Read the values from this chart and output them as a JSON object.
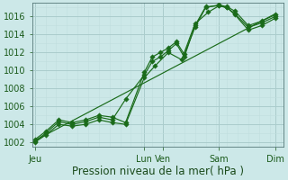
{
  "xlabel": "Pression niveau de la mer( hPa )",
  "bg_color": "#cce8e8",
  "grid_major_color": "#aacccc",
  "grid_minor_color": "#c0dede",
  "line_color": "#1a6b1a",
  "ylim": [
    1001.5,
    1017.5
  ],
  "yticks": [
    1002,
    1004,
    1006,
    1008,
    1010,
    1012,
    1014,
    1016
  ],
  "xlim": [
    -0.1,
    9.3
  ],
  "day_positions": [
    0.0,
    4.1,
    4.8,
    6.9,
    9.0
  ],
  "day_labels": [
    "Jeu",
    "Lun",
    "Ven",
    "Sam",
    "Dim"
  ],
  "trend_x": [
    0.0,
    9.0
  ],
  "trend_y": [
    1002.2,
    1016.3
  ],
  "line1_x": [
    0.0,
    0.4,
    0.9,
    1.4,
    1.9,
    2.4,
    2.9,
    3.4,
    4.1,
    4.4,
    4.7,
    5.0,
    5.3,
    5.6,
    6.0,
    6.4,
    6.9,
    7.2,
    7.5,
    8.0,
    8.5,
    9.0
  ],
  "line1_y": [
    1002.3,
    1003.2,
    1004.5,
    1004.2,
    1004.5,
    1005.0,
    1004.8,
    1004.2,
    1009.8,
    1011.5,
    1012.0,
    1012.5,
    1013.2,
    1011.8,
    1014.8,
    1017.0,
    1017.3,
    1017.1,
    1016.6,
    1015.0,
    1015.5,
    1016.2
  ],
  "line2_x": [
    0.0,
    0.4,
    0.9,
    1.4,
    1.9,
    2.4,
    2.9,
    3.4,
    4.1,
    4.4,
    4.7,
    5.0,
    5.3,
    5.6,
    6.0,
    6.4,
    6.9,
    7.2,
    7.5,
    8.0,
    8.5,
    9.0
  ],
  "line2_y": [
    1002.1,
    1003.0,
    1004.3,
    1004.0,
    1004.3,
    1004.8,
    1004.5,
    1006.8,
    1009.5,
    1011.0,
    1011.5,
    1012.2,
    1013.0,
    1011.5,
    1015.0,
    1017.1,
    1017.2,
    1017.0,
    1016.3,
    1014.8,
    1015.3,
    1016.0
  ],
  "line3_x": [
    0.0,
    0.4,
    0.9,
    1.4,
    1.9,
    2.4,
    2.9,
    3.4,
    4.1,
    4.5,
    5.0,
    5.5,
    6.0,
    6.5,
    6.9,
    7.2,
    7.5,
    8.0,
    8.5,
    9.0
  ],
  "line3_y": [
    1002.0,
    1002.8,
    1004.0,
    1003.8,
    1004.0,
    1004.5,
    1004.2,
    1004.0,
    1009.2,
    1010.5,
    1012.0,
    1011.2,
    1015.2,
    1016.5,
    1017.2,
    1017.0,
    1016.2,
    1014.5,
    1015.0,
    1015.8
  ],
  "xlabel_fontsize": 8.5,
  "tick_fontsize": 7
}
